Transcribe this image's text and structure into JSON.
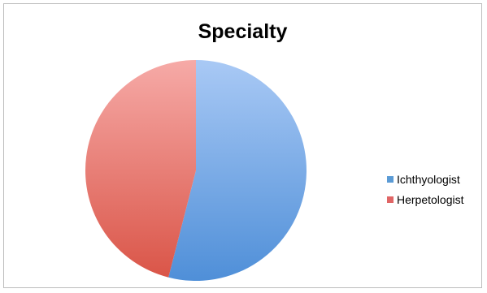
{
  "chart_data": {
    "type": "pie",
    "title": "Specialty",
    "categories": [
      "Ichthyologist",
      "Herpetologist"
    ],
    "values": [
      54,
      46
    ],
    "colors": [
      "#5b9bd5",
      "#e06666"
    ],
    "legend_position": "right"
  }
}
